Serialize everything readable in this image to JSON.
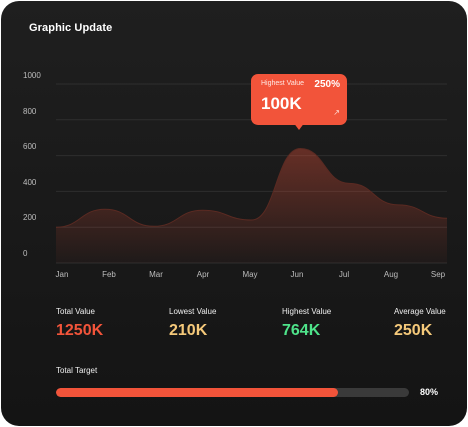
{
  "title": "Graphic Update",
  "colors": {
    "accent": "#f2543a",
    "total": "#f2543a",
    "lowest": "#f5c97a",
    "highest": "#4ee38a",
    "average": "#f5c97a"
  },
  "chart_data": {
    "type": "area",
    "categories": [
      "Jan",
      "Feb",
      "Mar",
      "Apr",
      "May",
      "Jun",
      "Jul",
      "Aug",
      "Sep"
    ],
    "values": [
      200,
      300,
      205,
      295,
      240,
      640,
      445,
      325,
      250
    ],
    "y_ticks": [
      "1000",
      "800",
      "600",
      "400",
      "200",
      "0"
    ],
    "ylim": [
      0,
      1000
    ],
    "grid": true
  },
  "tooltip": {
    "label": "Highest Value",
    "percent": "250%",
    "value": "100K",
    "icon": "arrow-up-right-icon"
  },
  "stats": [
    {
      "label": "Total Value",
      "value": "1250K"
    },
    {
      "label": "Lowest Value",
      "value": "210K"
    },
    {
      "label": "Highest Value",
      "value": "764K"
    },
    {
      "label": "Average Value",
      "value": "250K"
    }
  ],
  "target": {
    "label": "Total Target",
    "percent_text": "80%",
    "progress": 0.8
  }
}
